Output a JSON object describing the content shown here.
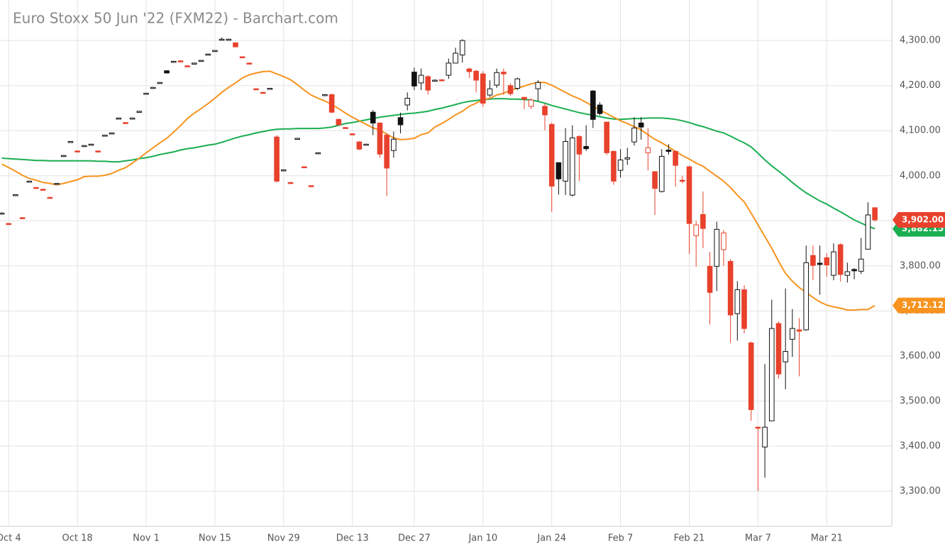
{
  "chart_data": {
    "type": "candlestick",
    "title": "Euro Stoxx 50 Jun '22 (FXM22) - Barchart.com",
    "categories": [
      null,
      "Oct 4",
      null,
      null,
      null,
      null,
      null,
      null,
      null,
      null,
      null,
      "Oct 18",
      null,
      null,
      null,
      null,
      null,
      null,
      null,
      null,
      null,
      "Nov 1",
      null,
      null,
      null,
      null,
      null,
      null,
      null,
      null,
      null,
      "Nov 15",
      null,
      null,
      null,
      null,
      null,
      null,
      null,
      null,
      null,
      "Nov 29",
      null,
      null,
      null,
      null,
      null,
      null,
      null,
      null,
      null,
      "Dec 13",
      null,
      null,
      null,
      null,
      null,
      null,
      null,
      null,
      "Dec 27",
      null,
      null,
      null,
      null,
      null,
      null,
      null,
      null,
      null,
      "Jan 10",
      null,
      null,
      null,
      null,
      null,
      null,
      null,
      null,
      null,
      "Jan 24",
      null,
      null,
      null,
      null,
      null,
      null,
      null,
      null,
      null,
      "Feb 7",
      null,
      null,
      null,
      null,
      null,
      null,
      null,
      null,
      null,
      "Feb 21",
      null,
      null,
      null,
      null,
      null,
      null,
      null,
      null,
      null,
      "Mar 7",
      null,
      null,
      null,
      null,
      null,
      null,
      null,
      null,
      null,
      "Mar 21",
      null,
      null,
      null,
      null,
      null,
      null,
      null
    ],
    "open": [
      3916,
      3894,
      3956,
      3907,
      3986,
      3974,
      3970,
      3952,
      3981,
      4043,
      4074,
      4055,
      4065,
      4068,
      4055,
      4088,
      4093,
      4126,
      4118,
      4126,
      4141,
      4181,
      4194,
      4205,
      4233,
      4252,
      4255,
      4244,
      4248,
      4254,
      4268,
      4276,
      4301,
      4301,
      4295,
      4264,
      4250,
      4193,
      4185,
      4192,
      4086,
      4011,
      3985,
      4081,
      4020,
      3978,
      4049,
      4178,
      4180,
      4125,
      4107,
      4093,
      4075,
      4068,
      4141,
      4117,
      4090,
      4056,
      4129,
      4157,
      4230,
      4206,
      4220,
      4211,
      4213,
      4223,
      4250,
      4268,
      4237,
      4232,
      4226,
      4179,
      4201,
      4230,
      4200,
      4194,
      4174,
      4154,
      4193,
      4154,
      4114,
      4029,
      3988,
      3957,
      4087,
      4065,
      4188,
      4157,
      4119,
      4054,
      4012,
      4037,
      4075,
      4117,
      4051,
      4009,
      3965,
      4057,
      4054,
      3990,
      4020,
      3867,
      3914,
      3799,
      3799,
      3836,
      3810,
      3694,
      3747,
      3629,
      3442,
      3398,
      3456,
      3672,
      3587,
      3637,
      3658,
      3658,
      3823,
      3806,
      3818,
      3779,
      3847,
      3779,
      3792,
      3788,
      3837,
      3929
    ],
    "high": [
      3919,
      3895,
      3959,
      3908,
      3989,
      3975,
      3971,
      3953,
      3984,
      4046,
      4077,
      4056,
      4068,
      4071,
      4056,
      4091,
      4096,
      4129,
      4119,
      4129,
      4144,
      4184,
      4197,
      4208,
      4234,
      4255,
      4256,
      4245,
      4251,
      4257,
      4271,
      4279,
      4307,
      4304,
      4296,
      4265,
      4251,
      4194,
      4186,
      4195,
      4090,
      4014,
      3986,
      4084,
      4021,
      3979,
      4052,
      4181,
      4182,
      4127,
      4108,
      4094,
      4077,
      4071,
      4146,
      4118,
      4095,
      4098,
      4140,
      4185,
      4240,
      4238,
      4223,
      4214,
      4214,
      4260,
      4284,
      4303,
      4240,
      4235,
      4232,
      4212,
      4238,
      4238,
      4205,
      4218,
      4175,
      4172,
      4212,
      4160,
      4118,
      4030,
      4106,
      4112,
      4090,
      4112,
      4190,
      4163,
      4120,
      4056,
      4059,
      4062,
      4130,
      4130,
      4106,
      4010,
      4059,
      4070,
      4056,
      4000,
      4022,
      3900,
      3965,
      3831,
      3898,
      3880,
      3815,
      3766,
      3757,
      3632,
      3443,
      3582,
      3725,
      3677,
      3750,
      3704,
      3684,
      3845,
      3845,
      3845,
      3828,
      3850,
      3850,
      3807,
      3795,
      3862,
      3941,
      3930
    ],
    "low": [
      3915,
      3891,
      3955,
      3904,
      3985,
      3971,
      3967,
      3949,
      3980,
      4042,
      4073,
      4052,
      4064,
      4067,
      4052,
      4087,
      4092,
      4125,
      4115,
      4125,
      4140,
      4180,
      4193,
      4204,
      4227,
      4251,
      4252,
      4241,
      4247,
      4253,
      4267,
      4275,
      4300,
      4300,
      4285,
      4261,
      4247,
      4190,
      4182,
      4191,
      3985,
      4010,
      3982,
      4080,
      4017,
      3975,
      4048,
      4177,
      4139,
      4111,
      4104,
      4090,
      4057,
      4067,
      4090,
      4040,
      3955,
      4040,
      4094,
      4145,
      4190,
      4190,
      4180,
      4210,
      4210,
      4215,
      4250,
      4251,
      4217,
      4185,
      4153,
      4175,
      4195,
      4180,
      4177,
      4190,
      4148,
      4148,
      4166,
      4101,
      3920,
      3958,
      3957,
      3954,
      3988,
      4055,
      4106,
      4134,
      4046,
      3980,
      3996,
      4024,
      4067,
      4080,
      4012,
      3913,
      3963,
      4047,
      3976,
      3983,
      3826,
      3798,
      3839,
      3670,
      3744,
      3800,
      3629,
      3634,
      3650,
      3456,
      3300,
      3330,
      3456,
      3550,
      3526,
      3598,
      3555,
      3656,
      3768,
      3736,
      3776,
      3768,
      3765,
      3763,
      3770,
      3782,
      3837,
      3898
    ],
    "close": [
      3917,
      3892,
      3958,
      3905,
      3988,
      3972,
      3968,
      3950,
      3983,
      4045,
      4076,
      4053,
      4067,
      4070,
      4053,
      4090,
      4095,
      4128,
      4116,
      4128,
      4143,
      4183,
      4196,
      4207,
      4228,
      4254,
      4253,
      4242,
      4250,
      4256,
      4270,
      4278,
      4303,
      4303,
      4286,
      4262,
      4248,
      4191,
      4183,
      4194,
      3988,
      4013,
      3983,
      4083,
      4018,
      3976,
      4051,
      4180,
      4141,
      4113,
      4105,
      4091,
      4059,
      4070,
      4117,
      4048,
      4017,
      4081,
      4113,
      4172,
      4199,
      4223,
      4190,
      4212,
      4211,
      4250,
      4272,
      4300,
      4231,
      4212,
      4161,
      4193,
      4229,
      4226,
      4182,
      4215,
      4170,
      4168,
      4207,
      4135,
      3977,
      3993,
      4076,
      4084,
      4048,
      4060,
      4125,
      4138,
      4051,
      3988,
      4035,
      4040,
      4106,
      4108,
      4062,
      3972,
      4043,
      4054,
      4023,
      3988,
      3894,
      3891,
      3883,
      3741,
      3881,
      3873,
      3691,
      3747,
      3661,
      3481,
      3440,
      3442,
      3661,
      3560,
      3610,
      3661,
      3655,
      3807,
      3801,
      3803,
      3802,
      3831,
      3781,
      3787,
      3789,
      3815,
      3913,
      3902
    ],
    "last_label": "3,902.00",
    "colors": {
      "up": "#111111",
      "down": "#e8412c"
    },
    "lines": [
      {
        "color": "#1aae52",
        "last_label": "3,882.15",
        "values": [
          4039,
          4038,
          4037,
          4036,
          4035,
          4034,
          4034,
          4033,
          4033,
          4033,
          4033,
          4033,
          4033,
          4033,
          4032,
          4032,
          4031,
          4031,
          4033,
          4035,
          4038,
          4040,
          4043,
          4047,
          4050,
          4053,
          4057,
          4060,
          4062,
          4065,
          4068,
          4070,
          4074,
          4079,
          4084,
          4088,
          4091,
          4095,
          4098,
          4101,
          4103,
          4104,
          4104,
          4105,
          4105,
          4105,
          4105,
          4106,
          4108,
          4112,
          4116,
          4118,
          4121,
          4124,
          4127,
          4130,
          4132,
          4134,
          4136,
          4138,
          4139,
          4141,
          4143,
          4147,
          4150,
          4154,
          4158,
          4162,
          4165,
          4167,
          4169,
          4170,
          4171,
          4171,
          4170,
          4170,
          4169,
          4168,
          4165,
          4161,
          4156,
          4152,
          4148,
          4144,
          4140,
          4137,
          4134,
          4131,
          4128,
          4126,
          4125,
          4126,
          4127,
          4127,
          4128,
          4128,
          4128,
          4127,
          4125,
          4122,
          4118,
          4113,
          4109,
          4104,
          4099,
          4095,
          4088,
          4080,
          4073,
          4064,
          4050,
          4035,
          4022,
          4010,
          3998,
          3985,
          3973,
          3962,
          3953,
          3944,
          3937,
          3928,
          3920,
          3911,
          3902,
          3895,
          3888,
          3882.15
        ]
      },
      {
        "color": "#f7931e",
        "last_label": "3,712.12",
        "values": [
          4026,
          4018,
          4010,
          4001,
          3994,
          3990,
          3985,
          3983,
          3980,
          3983,
          3987,
          3991,
          3998,
          3999,
          3999,
          4001,
          4005,
          4012,
          4018,
          4028,
          4039,
          4051,
          4062,
          4073,
          4083,
          4097,
          4111,
          4127,
          4139,
          4149,
          4160,
          4172,
          4185,
          4196,
          4206,
          4217,
          4224,
          4228,
          4231,
          4232,
          4226,
          4220,
          4213,
          4202,
          4190,
          4179,
          4172,
          4166,
          4158,
          4149,
          4139,
          4130,
          4122,
          4114,
          4106,
          4102,
          4092,
          4084,
          4080,
          4081,
          4083,
          4091,
          4095,
          4108,
          4116,
          4125,
          4135,
          4143,
          4154,
          4161,
          4169,
          4172,
          4179,
          4183,
          4190,
          4194,
          4199,
          4204,
          4207,
          4207,
          4201,
          4193,
          4185,
          4177,
          4171,
          4163,
          4154,
          4146,
          4138,
          4130,
          4122,
          4116,
          4109,
          4102,
          4091,
          4081,
          4073,
          4064,
          4054,
          4045,
          4037,
          4028,
          4021,
          4010,
          3999,
          3988,
          3974,
          3957,
          3942,
          3917,
          3891,
          3865,
          3839,
          3810,
          3783,
          3766,
          3752,
          3741,
          3730,
          3720,
          3713,
          3709,
          3706,
          3702,
          3702,
          3703,
          3703,
          3712.12
        ]
      }
    ],
    "ylim": [
      3222,
      4390
    ],
    "yticks": [
      {
        "value": 3300,
        "label": "3,300.00"
      },
      {
        "value": 3400,
        "label": "3,400.00"
      },
      {
        "value": 3500,
        "label": "3,500.00"
      },
      {
        "value": 3600,
        "label": "3,600.00"
      },
      {
        "value": 3700,
        "label": "3,700.00"
      },
      {
        "value": 3800,
        "label": "3,800.00"
      },
      {
        "value": 3900,
        "label": "3,900.00"
      },
      {
        "value": 4000,
        "label": "4,000.00"
      },
      {
        "value": 4100,
        "label": "4,100.00"
      },
      {
        "value": 4200,
        "label": "4,200.00"
      },
      {
        "value": 4300,
        "label": "4,300.00"
      }
    ],
    "grid": true
  }
}
